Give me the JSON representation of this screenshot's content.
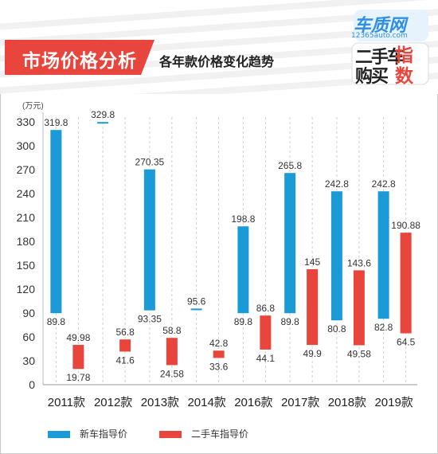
{
  "header": {
    "title": "市场价格分析",
    "subtitle": "各年款价格变化趋势",
    "logo": {
      "site": "车质网",
      "url": "12365auto.com",
      "line1": "二手车",
      "line1_accent": "指",
      "line2": "购买",
      "line2_accent": "数"
    }
  },
  "chart_data": {
    "type": "bar",
    "subtype": "floating-range",
    "categories": [
      "2011款",
      "2012款",
      "2013款",
      "2014款",
      "2016款",
      "2017款",
      "2018款",
      "2019款"
    ],
    "ylabel": "(万元)",
    "ylim": [
      0,
      330
    ],
    "yticks": [
      0,
      30,
      60,
      90,
      120,
      150,
      180,
      210,
      240,
      270,
      300,
      330
    ],
    "grid": "vertical dashed",
    "legend_position": "bottom-left",
    "series": [
      {
        "name": "新车指导价",
        "color": "#1a9ad7",
        "low": [
          89.8,
          null,
          93.35,
          null,
          89.8,
          89.8,
          80.8,
          82.8
        ],
        "high": [
          319.8,
          329.8,
          270.35,
          95.6,
          198.8,
          265.8,
          242.8,
          242.8
        ],
        "low_labels": [
          "89.8",
          "",
          "93.35",
          "",
          "89.8",
          "89.8",
          "80.8",
          "82.8"
        ],
        "high_labels": [
          "319.8",
          "329.8",
          "270.35",
          "95.6",
          "198.8",
          "265.8",
          "242.8",
          "242.8"
        ]
      },
      {
        "name": "二手车指导价",
        "color": "#e8453c",
        "low": [
          19.78,
          41.6,
          24.58,
          33.6,
          44.1,
          49.9,
          49.58,
          64.5
        ],
        "high": [
          49.98,
          56.8,
          58.8,
          42.8,
          86.8,
          145,
          143.6,
          190.88
        ],
        "low_labels": [
          "19.78",
          "41.6",
          "24.58",
          "33.6",
          "44.1",
          "49.9",
          "49.58",
          "64.5"
        ],
        "high_labels": [
          "49.98",
          "56.8",
          "58.8",
          "42.8",
          "86.8",
          "145",
          "143.6",
          "190.88"
        ]
      }
    ]
  }
}
